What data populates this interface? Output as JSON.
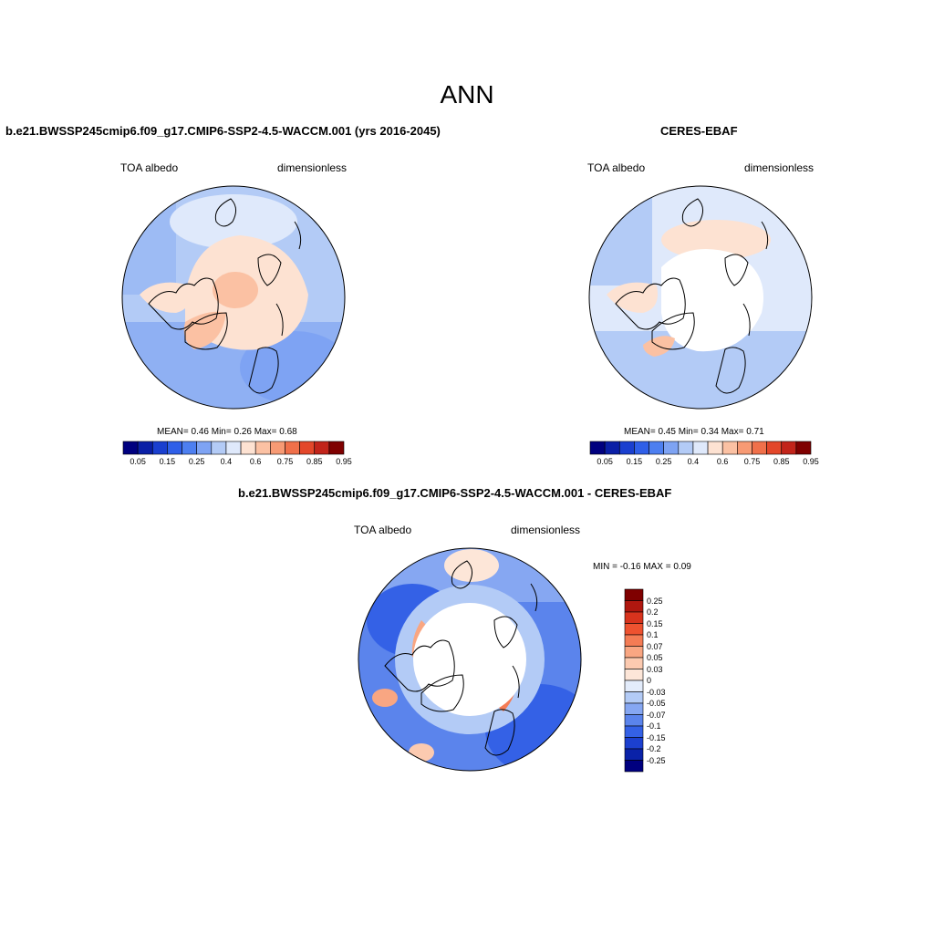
{
  "figure": {
    "title": "ANN"
  },
  "panels": {
    "model": {
      "title": "b.e21.BWSSP245cmip6.f09_g17.CMIP6-SSP2-4.5-WACCM.001 (yrs 2016-2045)",
      "variable": "TOA albedo",
      "units": "dimensionless",
      "stats": "MEAN=   0.46  Min=   0.26  Max=   0.68"
    },
    "obs": {
      "title": "CERES-EBAF",
      "variable": "TOA albedo",
      "units": "dimensionless",
      "stats": "MEAN=   0.45  Min=   0.34  Max=   0.71"
    },
    "diff": {
      "title": "b.e21.BWSSP245cmip6.f09_g17.CMIP6-SSP2-4.5-WACCM.001 - CERES-EBAF",
      "variable": "TOA albedo",
      "units": "dimensionless",
      "stats": "MIN =  -0.16 MAX =   0.09"
    }
  },
  "colorbars": {
    "absolute": {
      "labels": [
        "0.05",
        "0.15",
        "0.25",
        "0.4",
        "0.6",
        "0.75",
        "0.85",
        "0.95"
      ],
      "colors": [
        "#00007f",
        "#0a1fa6",
        "#1a3fcf",
        "#2f5fe8",
        "#4d7ff0",
        "#7ea3f3",
        "#b3cbf6",
        "#dfe9fb",
        "#fde2d2",
        "#fbc1a3",
        "#f79a74",
        "#f0704a",
        "#e3472a",
        "#c2241a",
        "#7f0000"
      ]
    },
    "diff": {
      "labels": [
        "0.25",
        "0.2",
        "0.15",
        "0.1",
        "0.07",
        "0.05",
        "0.03",
        "0",
        "-0.03",
        "-0.05",
        "-0.07",
        "-0.1",
        "-0.15",
        "-0.2",
        "-0.25"
      ],
      "colors": [
        "#7f0000",
        "#b0170f",
        "#d8331d",
        "#ee5230",
        "#f47c55",
        "#f9a682",
        "#fccab0",
        "#fde6d8",
        "#e3ecfb",
        "#b3cbf6",
        "#86a7f2",
        "#5b84ec",
        "#3461e6",
        "#1c40cf",
        "#0a22a8",
        "#00007f"
      ]
    }
  }
}
